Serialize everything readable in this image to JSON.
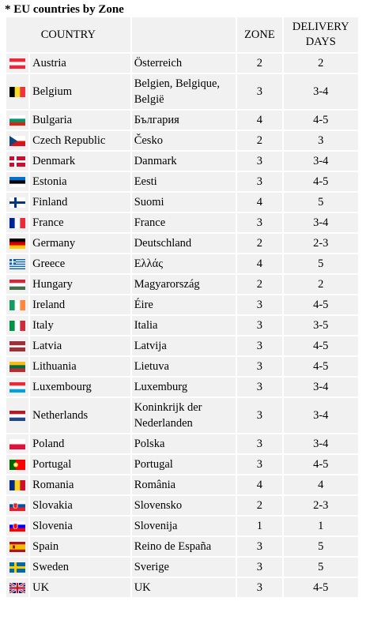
{
  "title": "* EU countries by Zone",
  "headers": {
    "country": "COUNTRY",
    "zone": "ZONE",
    "delivery": "DELIVERY DAYS"
  },
  "rows": [
    {
      "country": "Austria",
      "local": "Österreich",
      "zone": "2",
      "days": "2",
      "flag_icon": "austria-flag-icon",
      "flag": "stripes-h",
      "colors": [
        "#ed2939",
        "#ffffff",
        "#ed2939"
      ]
    },
    {
      "country": "Belgium",
      "local": "Belgien, Belgique, België",
      "zone": "3",
      "days": "3-4",
      "flag_icon": "belgium-flag-icon",
      "flag": "stripes-v",
      "colors": [
        "#000000",
        "#fdda24",
        "#ef3340"
      ]
    },
    {
      "country": "Bulgaria",
      "local": "България",
      "zone": "4",
      "days": "4-5",
      "flag_icon": "bulgaria-flag-icon",
      "flag": "stripes-h",
      "colors": [
        "#ffffff",
        "#00966e",
        "#d62612"
      ]
    },
    {
      "country": "Czech Republic",
      "local": "Česko",
      "zone": "2",
      "days": "3",
      "flag_icon": "czech-flag-icon",
      "flag": "czech",
      "colors": [
        "#ffffff",
        "#d7141a",
        "#11457e"
      ]
    },
    {
      "country": "Denmark",
      "local": "Danmark",
      "zone": "3",
      "days": "3-4",
      "flag_icon": "denmark-flag-icon",
      "flag": "nordic",
      "colors": [
        "#c8102e",
        "#ffffff"
      ]
    },
    {
      "country": "Estonia",
      "local": "Eesti",
      "zone": "3",
      "days": "4-5",
      "flag_icon": "estonia-flag-icon",
      "flag": "stripes-h",
      "colors": [
        "#0072ce",
        "#000000",
        "#ffffff"
      ]
    },
    {
      "country": "Finland",
      "local": "Suomi",
      "zone": "4",
      "days": "5",
      "flag_icon": "finland-flag-icon",
      "flag": "nordic",
      "colors": [
        "#ffffff",
        "#003580"
      ]
    },
    {
      "country": "France",
      "local": "France",
      "zone": "3",
      "days": "3-4",
      "flag_icon": "france-flag-icon",
      "flag": "stripes-v",
      "colors": [
        "#002395",
        "#ffffff",
        "#ed2939"
      ]
    },
    {
      "country": "Germany",
      "local": "Deutschland",
      "zone": "2",
      "days": "2-3",
      "flag_icon": "germany-flag-icon",
      "flag": "stripes-h",
      "colors": [
        "#000000",
        "#dd0000",
        "#ffce00"
      ]
    },
    {
      "country": "Greece",
      "local": "Ελλάς",
      "zone": "4",
      "days": "5",
      "flag_icon": "greece-flag-icon",
      "flag": "greece",
      "colors": [
        "#0d5eaf",
        "#ffffff"
      ]
    },
    {
      "country": "Hungary",
      "local": "Magyarország",
      "zone": "2",
      "days": "2",
      "flag_icon": "hungary-flag-icon",
      "flag": "stripes-h",
      "colors": [
        "#cd2a3e",
        "#ffffff",
        "#436f4d"
      ]
    },
    {
      "country": "Ireland",
      "local": "Éire",
      "zone": "3",
      "days": "4-5",
      "flag_icon": "ireland-flag-icon",
      "flag": "stripes-v",
      "colors": [
        "#169b62",
        "#ffffff",
        "#ff883e"
      ]
    },
    {
      "country": "Italy",
      "local": "Italia",
      "zone": "3",
      "days": "3-5",
      "flag_icon": "italy-flag-icon",
      "flag": "stripes-v",
      "colors": [
        "#009246",
        "#ffffff",
        "#ce2b37"
      ]
    },
    {
      "country": "Latvia",
      "local": "Latvija",
      "zone": "3",
      "days": "4-5",
      "flag_icon": "latvia-flag-icon",
      "flag": "latvia",
      "colors": [
        "#9e3039",
        "#ffffff",
        "#9e3039"
      ]
    },
    {
      "country": "Lithuania",
      "local": "Lietuva",
      "zone": "3",
      "days": "4-5",
      "flag_icon": "lithuania-flag-icon",
      "flag": "stripes-h",
      "colors": [
        "#fdb913",
        "#006a44",
        "#c1272d"
      ]
    },
    {
      "country": "Luxembourg",
      "local": "Luxemburg",
      "zone": "3",
      "days": "3-4",
      "flag_icon": "luxembourg-flag-icon",
      "flag": "stripes-h",
      "colors": [
        "#ed2939",
        "#ffffff",
        "#00a1de"
      ]
    },
    {
      "country": "Netherlands",
      "local": "Koninkrijk der Nederlanden",
      "zone": "3",
      "days": "3-4",
      "flag_icon": "netherlands-flag-icon",
      "flag": "stripes-h",
      "colors": [
        "#ae1c28",
        "#ffffff",
        "#21468b"
      ]
    },
    {
      "country": "Poland",
      "local": "Polska",
      "zone": "3",
      "days": "3-4",
      "flag_icon": "poland-flag-icon",
      "flag": "stripes-h",
      "colors": [
        "#ffffff",
        "#dc143c"
      ]
    },
    {
      "country": "Portugal",
      "local": "Portugal",
      "zone": "3",
      "days": "4-5",
      "flag_icon": "portugal-flag-icon",
      "flag": "portugal",
      "colors": [
        "#006600",
        "#ff0000",
        "#ffcc00"
      ]
    },
    {
      "country": "Romania",
      "local": "România",
      "zone": "4",
      "days": "4",
      "flag_icon": "romania-flag-icon",
      "flag": "stripes-v",
      "colors": [
        "#002b7f",
        "#fcd116",
        "#ce1126"
      ]
    },
    {
      "country": "Slovakia",
      "local": "Slovensko",
      "zone": "2",
      "days": "2-3",
      "flag_icon": "slovakia-flag-icon",
      "flag": "stripes-h-emblem",
      "colors": [
        "#ffffff",
        "#0b4ea2",
        "#ee1c25"
      ]
    },
    {
      "country": "Slovenia",
      "local": "Slovenija",
      "zone": "1",
      "days": "1",
      "flag_icon": "slovenia-flag-icon",
      "flag": "stripes-h-emblem",
      "colors": [
        "#ffffff",
        "#0000ff",
        "#ff0000"
      ]
    },
    {
      "country": "Spain",
      "local": "Reino de España",
      "zone": "3",
      "days": "5",
      "flag_icon": "spain-flag-icon",
      "flag": "spain",
      "colors": [
        "#aa151b",
        "#f1bf00",
        "#aa151b"
      ]
    },
    {
      "country": "Sweden",
      "local": "Sverige",
      "zone": "3",
      "days": "5",
      "flag_icon": "sweden-flag-icon",
      "flag": "nordic",
      "colors": [
        "#006aa7",
        "#fecc00"
      ]
    },
    {
      "country": "UK",
      "local": "UK",
      "zone": "3",
      "days": "4-5",
      "flag_icon": "uk-flag-icon",
      "flag": "uk",
      "colors": [
        "#012169",
        "#ffffff",
        "#c8102e"
      ]
    }
  ]
}
